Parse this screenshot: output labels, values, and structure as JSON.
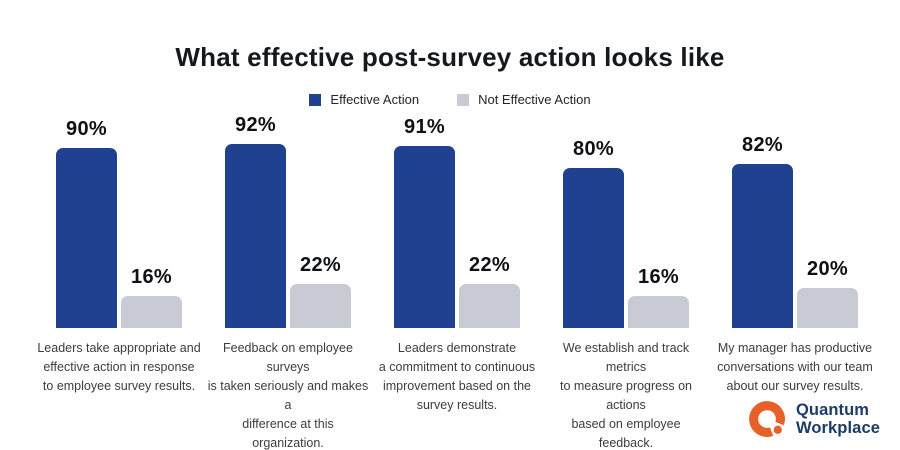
{
  "title": "What effective post-survey action looks like",
  "legend": {
    "items": [
      {
        "label": "Effective Action",
        "color": "#1f4190"
      },
      {
        "label": "Not Effective Action",
        "color": "#c8cbd4"
      }
    ]
  },
  "chart_data": {
    "type": "bar",
    "title": "What effective post-survey action looks like",
    "value_suffix": "%",
    "ylim": [
      0,
      100
    ],
    "grid": false,
    "legend_position": "top",
    "categories": [
      "Leaders take appropriate and\neffective action in response\nto employee survey results.",
      "Feedback on employee surveys\nis taken seriously and makes a\ndifference at this organization.",
      "Leaders demonstrate\na commitment to continuous\nimprovement based on the\nsurvey results.",
      "We establish and track metrics\nto measure progress on actions\nbased on employee feedback.",
      "My manager has productive\nconversations with our team\nabout our survey results."
    ],
    "series": [
      {
        "name": "Effective Action",
        "color": "#1f4190",
        "values": [
          90,
          92,
          91,
          80,
          82
        ]
      },
      {
        "name": "Not Effective Action",
        "color": "#c8cbd4",
        "values": [
          16,
          22,
          22,
          16,
          20
        ]
      }
    ]
  },
  "logo": {
    "line1": "Quantum",
    "line2": "Workplace",
    "icon_color": "#e7602a",
    "text_color": "#1c3b66"
  }
}
